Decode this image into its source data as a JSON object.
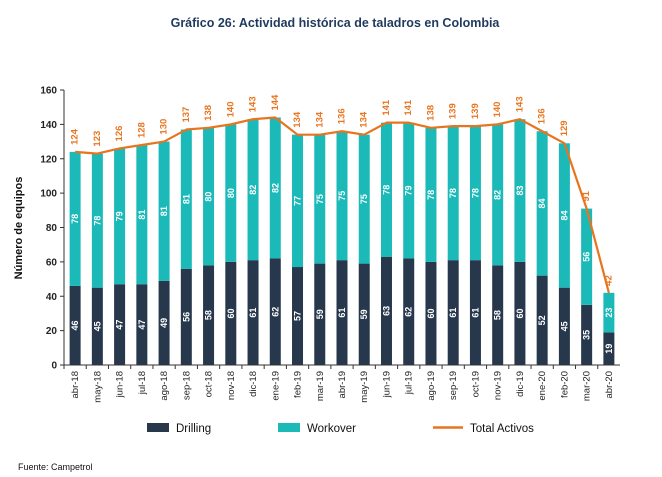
{
  "chart_data": {
    "type": "bar",
    "title": "Gráfico 26: Actividad histórica de taladros en Colombia",
    "xlabel": "",
    "ylabel": "Número de equipos",
    "ylim": [
      0,
      160
    ],
    "yticks": [
      0,
      20,
      40,
      60,
      80,
      100,
      120,
      140,
      160
    ],
    "grid": false,
    "legend_position": "bottom",
    "categories": [
      "abr-18",
      "may-18",
      "jun-18",
      "jul-18",
      "ago-18",
      "sep-18",
      "oct-18",
      "nov-18",
      "dic-18",
      "ene-19",
      "feb-19",
      "mar-19",
      "abr-19",
      "may-19",
      "jun-19",
      "jul-19",
      "ago-19",
      "sep-19",
      "oct-19",
      "nov-19",
      "dic-19",
      "ene-20",
      "feb-20",
      "mar-20",
      "abr-20"
    ],
    "series": [
      {
        "name": "Drilling",
        "type": "bar",
        "stacked": true,
        "color": "#27384d",
        "values": [
          46,
          45,
          47,
          47,
          49,
          56,
          58,
          60,
          61,
          62,
          57,
          59,
          61,
          59,
          63,
          62,
          60,
          61,
          61,
          58,
          60,
          52,
          45,
          35,
          19
        ]
      },
      {
        "name": "Workover",
        "type": "bar",
        "stacked": true,
        "color": "#1bbab9",
        "values": [
          78,
          78,
          79,
          81,
          81,
          81,
          80,
          80,
          82,
          82,
          77,
          75,
          75,
          75,
          78,
          79,
          78,
          78,
          78,
          82,
          83,
          84,
          84,
          56,
          23
        ]
      },
      {
        "name": "Total Activos",
        "type": "line",
        "color": "#e8741e",
        "values": [
          124,
          123,
          126,
          128,
          130,
          137,
          138,
          140,
          143,
          144,
          134,
          134,
          136,
          134,
          141,
          141,
          138,
          139,
          139,
          140,
          143,
          136,
          129,
          91,
          42
        ]
      }
    ]
  },
  "source": "Fuente: Campetrol"
}
